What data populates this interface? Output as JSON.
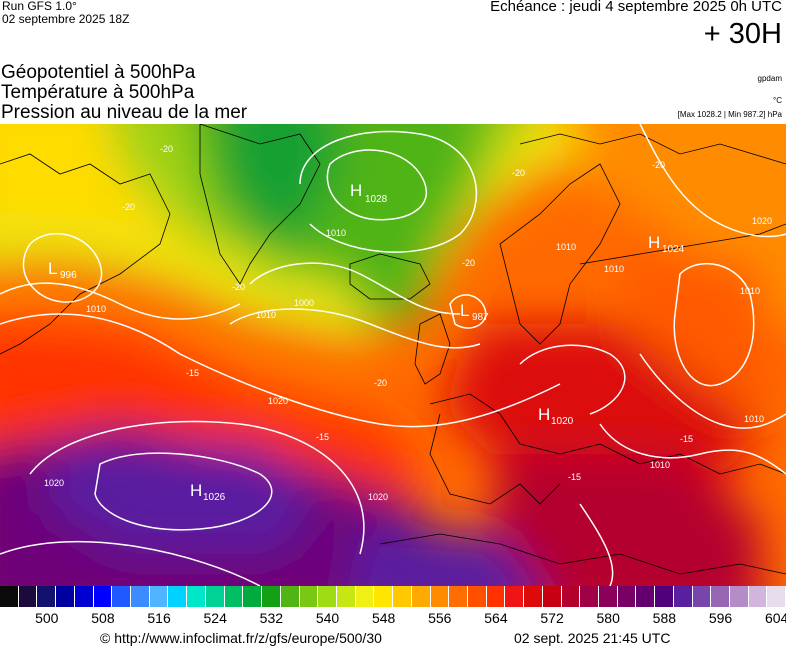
{
  "header": {
    "run_label": "Run GFS 1.0°",
    "run_date": "02 septembre 2025 18Z",
    "echeance": "Echéance : jeudi 4 septembre 2025 0h UTC",
    "lead_time": "+ 30H"
  },
  "parameters": [
    "Géopotentiel à 500hPa",
    "Température à 500hPa",
    "Pression au niveau de la mer"
  ],
  "units": {
    "geopotential": "gpdam",
    "temperature": "°C",
    "pressure": "[Max 1028.2 | Min 987.2] hPa"
  },
  "map": {
    "pressure_centers": [
      {
        "type": "H",
        "value": "1028",
        "name": "high-iceland"
      },
      {
        "type": "H",
        "value": "1024",
        "name": "high-russia"
      },
      {
        "type": "H",
        "value": "1020",
        "name": "high-italy"
      },
      {
        "type": "H",
        "value": "1026",
        "name": "high-azores"
      },
      {
        "type": "L",
        "value": "996",
        "name": "low-labrador"
      },
      {
        "type": "L",
        "value": "987",
        "name": "low-north-sea"
      }
    ],
    "isobar_labels": [
      "1010",
      "1000",
      "1010",
      "1020",
      "1020",
      "1020",
      "1010",
      "1010",
      "1010",
      "1010",
      "1020",
      "1010",
      "1010"
    ],
    "temperature_labels": [
      "-20",
      "-20",
      "-20",
      "-20",
      "-20",
      "-20",
      "-20",
      "-15",
      "-15",
      "-15",
      "-15"
    ]
  },
  "colorbar": {
    "colors": [
      "#0a0a0a",
      "#1c0a3c",
      "#12126e",
      "#0000a0",
      "#0000d0",
      "#0000ff",
      "#1e5aff",
      "#3c8cff",
      "#50b4ff",
      "#00d2ff",
      "#00e6c8",
      "#00d296",
      "#00be64",
      "#00aa3c",
      "#14a014",
      "#50b414",
      "#78c814",
      "#a0dc14",
      "#c8e614",
      "#f0f014",
      "#ffe600",
      "#ffc800",
      "#ffaa00",
      "#ff8c00",
      "#ff6e00",
      "#ff5000",
      "#ff3200",
      "#f01414",
      "#dc0a0a",
      "#c80014",
      "#b4002d",
      "#a00046",
      "#8c005a",
      "#780064",
      "#64006e",
      "#500078",
      "#5a1ea0",
      "#7846aa",
      "#9666b4",
      "#b48cc8",
      "#d2b4dc",
      "#e6dcec"
    ],
    "labels": [
      "500",
      "508",
      "516",
      "524",
      "532",
      "540",
      "548",
      "556",
      "564",
      "572",
      "580",
      "588",
      "596",
      "604"
    ]
  },
  "footer": {
    "copyright": "© http://www.infoclimat.fr/z/gfs/europe/500/30",
    "timestamp": "02 sept. 2025 21:45 UTC"
  }
}
